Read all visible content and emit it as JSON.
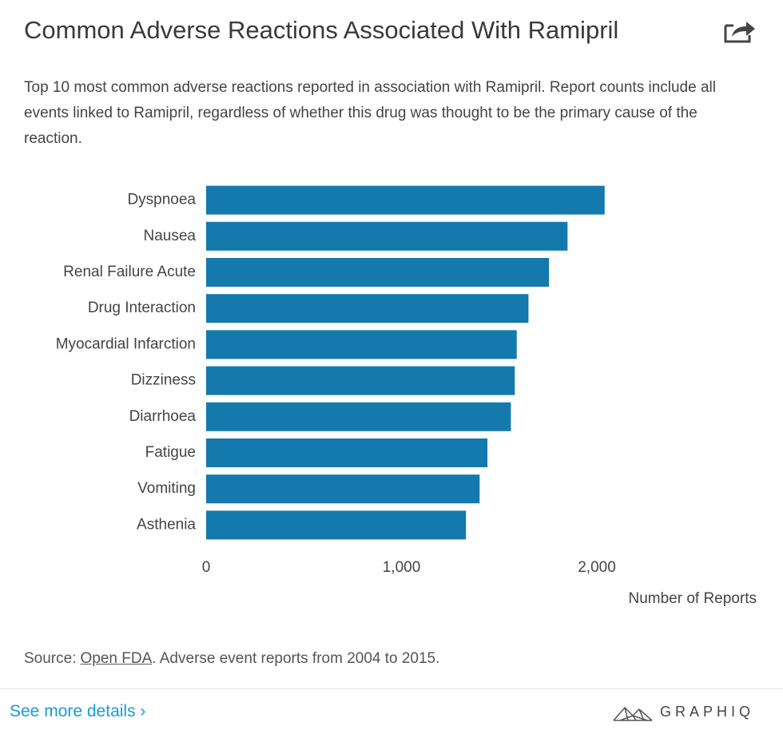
{
  "chart_data": {
    "type": "bar",
    "orientation": "horizontal",
    "title": "Common Adverse Reactions Associated With Ramipril",
    "subtitle": "Top 10 most common adverse reactions reported in association with Ramipril. Report counts include all events linked to Ramipril, regardless of whether this drug was thought to be the primary cause of the reaction.",
    "categories": [
      "Dyspnoea",
      "Nausea",
      "Renal Failure Acute",
      "Drug Interaction",
      "Myocardial Infarction",
      "Dizziness",
      "Diarrhoea",
      "Fatigue",
      "Vomiting",
      "Asthenia"
    ],
    "values": [
      2040,
      1850,
      1755,
      1650,
      1590,
      1580,
      1560,
      1440,
      1400,
      1330
    ],
    "color": "#1479ad",
    "xlim": [
      0,
      2800
    ],
    "xticks": [
      0,
      {
        "value": 1000,
        "label": "1,000"
      },
      {
        "value": 2000,
        "label": "2,000"
      }
    ],
    "x_label": "Number of Reports",
    "grid": false
  },
  "source": {
    "label": "Source:",
    "link": "Open FDA",
    "text": ". Adverse event reports from 2004 to 2015."
  },
  "footer": {
    "link": "See more details ›",
    "brand": "GRAPHIQ"
  }
}
